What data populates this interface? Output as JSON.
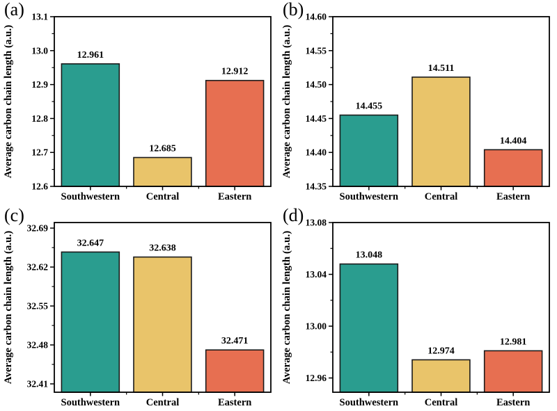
{
  "figure": {
    "background_color": "#ffffff",
    "text_color": "#000000",
    "axis_color": "#000000",
    "bar_edge_color": "#1a1a1a",
    "series_colors": {
      "southwestern": "#2a9d8f",
      "central": "#e9c46a",
      "eastern": "#e76f51"
    }
  },
  "chart_data": [
    {
      "type": "bar",
      "panel_label": "(a)",
      "ylabel": "Average carbon chain length (a.u.)",
      "xlabel": "",
      "categories": [
        "Southwestern",
        "Central",
        "Eastern"
      ],
      "values": [
        12.961,
        12.685,
        12.912
      ],
      "bar_labels": [
        "12.961",
        "12.685",
        "12.912"
      ],
      "bar_colors": [
        "#2a9d8f",
        "#e9c46a",
        "#e76f51"
      ],
      "ylim": [
        12.6,
        13.1
      ],
      "yticks": [
        12.6,
        12.7,
        12.8,
        12.9,
        13.0,
        13.1
      ],
      "ytick_labels": [
        "12.6",
        "12.7",
        "12.8",
        "12.9",
        "13.0",
        "13.1"
      ],
      "grid": false,
      "legend": false
    },
    {
      "type": "bar",
      "panel_label": "(b)",
      "ylabel": "Average carbon chain length (a.u.)",
      "xlabel": "",
      "categories": [
        "Southwestern",
        "Central",
        "Eastern"
      ],
      "values": [
        14.455,
        14.511,
        14.404
      ],
      "bar_labels": [
        "14.455",
        "14.511",
        "14.404"
      ],
      "bar_colors": [
        "#2a9d8f",
        "#e9c46a",
        "#e76f51"
      ],
      "ylim": [
        14.35,
        14.6
      ],
      "yticks": [
        14.35,
        14.4,
        14.45,
        14.5,
        14.55,
        14.6
      ],
      "ytick_labels": [
        "14.35",
        "14.40",
        "14.45",
        "14.50",
        "14.55",
        "14.60"
      ],
      "grid": false,
      "legend": false
    },
    {
      "type": "bar",
      "panel_label": "(c)",
      "ylabel": "Average carbon chain length (a.u.)",
      "xlabel": "",
      "categories": [
        "Southwestern",
        "Central",
        "Eastern"
      ],
      "values": [
        32.647,
        32.638,
        32.471
      ],
      "bar_labels": [
        "32.647",
        "32.638",
        "32.471"
      ],
      "bar_colors": [
        "#2a9d8f",
        "#e9c46a",
        "#e76f51"
      ],
      "ylim": [
        32.395,
        32.7
      ],
      "yticks": [
        32.41,
        32.48,
        32.55,
        32.62,
        32.69
      ],
      "ytick_labels": [
        "32.41",
        "32.48",
        "32.55",
        "32.62",
        "32.69"
      ],
      "grid": false,
      "legend": false
    },
    {
      "type": "bar",
      "panel_label": "(d)",
      "ylabel": "Average carbon chain length (a.u.)",
      "xlabel": "",
      "categories": [
        "Southwestern",
        "Central",
        "Eastern"
      ],
      "values": [
        13.048,
        12.974,
        12.981
      ],
      "bar_labels": [
        "13.048",
        "12.974",
        "12.981"
      ],
      "bar_colors": [
        "#2a9d8f",
        "#e9c46a",
        "#e76f51"
      ],
      "ylim": [
        12.949,
        13.08
      ],
      "yticks": [
        12.96,
        13.0,
        13.04,
        13.08
      ],
      "ytick_labels": [
        "12.96",
        "13.00",
        "13.04",
        "13.08"
      ],
      "grid": false,
      "legend": false
    }
  ]
}
